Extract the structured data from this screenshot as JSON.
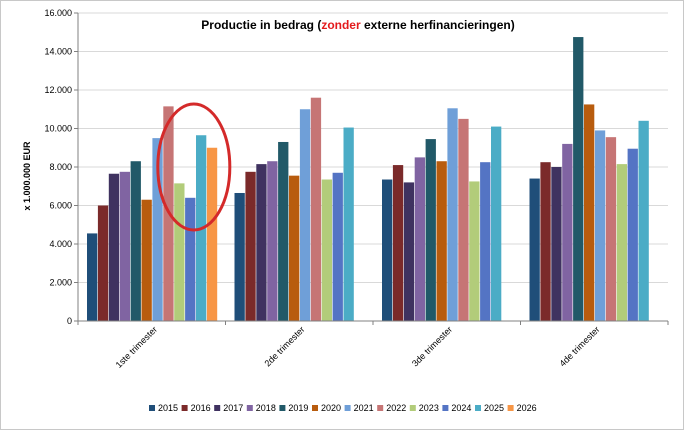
{
  "chart_data": {
    "type": "bar",
    "title_parts": {
      "before": "Productie in bedrag (",
      "highlight": "zonder",
      "after": " externe herfinancieringen)"
    },
    "highlight_color": "#e31a1c",
    "ylabel": "x 1.000.000 EUR",
    "xlabel": "",
    "ylim": [
      0,
      16000
    ],
    "ytick_labels": [
      "0",
      "2.000",
      "4.000",
      "6.000",
      "8.000",
      "10.000",
      "12.000",
      "14.000",
      "16.000"
    ],
    "grid": true,
    "legend_position": "bottom",
    "categories": [
      "1ste trimester",
      "2de trimester",
      "3de trimester",
      "4de trimester"
    ],
    "series": [
      {
        "name": "2015",
        "color": "#1f4e79",
        "values": [
          4550,
          6650,
          7350,
          7400
        ]
      },
      {
        "name": "2016",
        "color": "#7b2a2a",
        "values": [
          6000,
          7750,
          8100,
          8250
        ]
      },
      {
        "name": "2017",
        "color": "#3f3260",
        "values": [
          7650,
          8150,
          7200,
          8000
        ]
      },
      {
        "name": "2018",
        "color": "#8064a2",
        "values": [
          7750,
          8300,
          8500,
          9200
        ]
      },
      {
        "name": "2019",
        "color": "#215968",
        "values": [
          8300,
          9300,
          9450,
          14750
        ]
      },
      {
        "name": "2020",
        "color": "#b85c0e",
        "values": [
          6300,
          7550,
          8300,
          11250
        ]
      },
      {
        "name": "2021",
        "color": "#6f9fd8",
        "values": [
          9500,
          11000,
          11050,
          9900
        ]
      },
      {
        "name": "2022",
        "color": "#c67575",
        "values": [
          11150,
          11600,
          10500,
          9550
        ]
      },
      {
        "name": "2023",
        "color": "#b2cc7a",
        "values": [
          7150,
          7350,
          7250,
          8150
        ]
      },
      {
        "name": "2024",
        "color": "#5474c4",
        "values": [
          6400,
          7700,
          8250,
          8950
        ]
      },
      {
        "name": "2025",
        "color": "#4bacc6",
        "values": [
          9650,
          10050,
          10100,
          10400
        ]
      },
      {
        "name": "2026",
        "color": "#f79646",
        "values": [
          9000,
          null,
          null,
          null
        ]
      }
    ],
    "annotation": {
      "type": "ellipse",
      "category": "1ste trimester",
      "color": "#d42a2a"
    }
  }
}
